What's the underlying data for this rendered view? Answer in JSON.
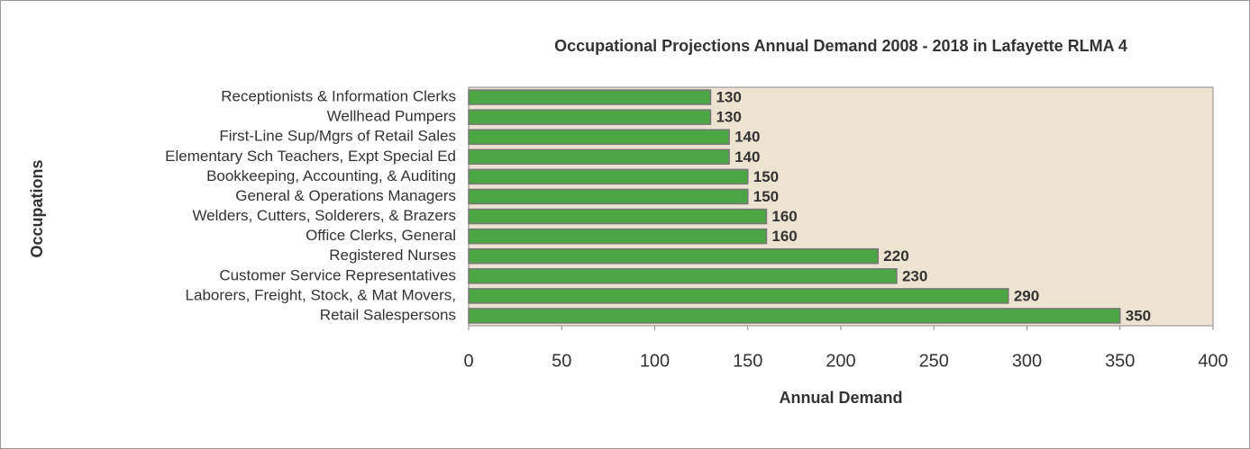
{
  "chart_data": {
    "type": "bar",
    "orientation": "horizontal",
    "title": "Occupational Projections Annual Demand 2008 - 2018 in Lafayette RLMA 4",
    "x_label": "Annual Demand",
    "y_label": "Occupations",
    "categories": [
      "Receptionists & Information Clerks",
      "Wellhead Pumpers",
      "First-Line Sup/Mgrs of Retail Sales",
      "Elementary Sch Teachers, Expt Special Ed",
      "Bookkeeping, Accounting, & Auditing",
      "General & Operations Managers",
      "Welders, Cutters, Solderers, & Brazers",
      "Office Clerks, General",
      "Registered Nurses",
      "Customer Service Representatives",
      "Laborers, Freight, Stock, & Mat Movers,",
      "Retail Salespersons"
    ],
    "values": [
      130,
      130,
      140,
      140,
      150,
      150,
      160,
      160,
      220,
      230,
      290,
      350
    ],
    "color": "#4ca643",
    "plot_background": "#ede3d3",
    "xlim": [
      0,
      400
    ],
    "xticks": [
      0,
      50,
      100,
      150,
      200,
      250,
      300,
      350,
      400
    ],
    "grid": false
  }
}
